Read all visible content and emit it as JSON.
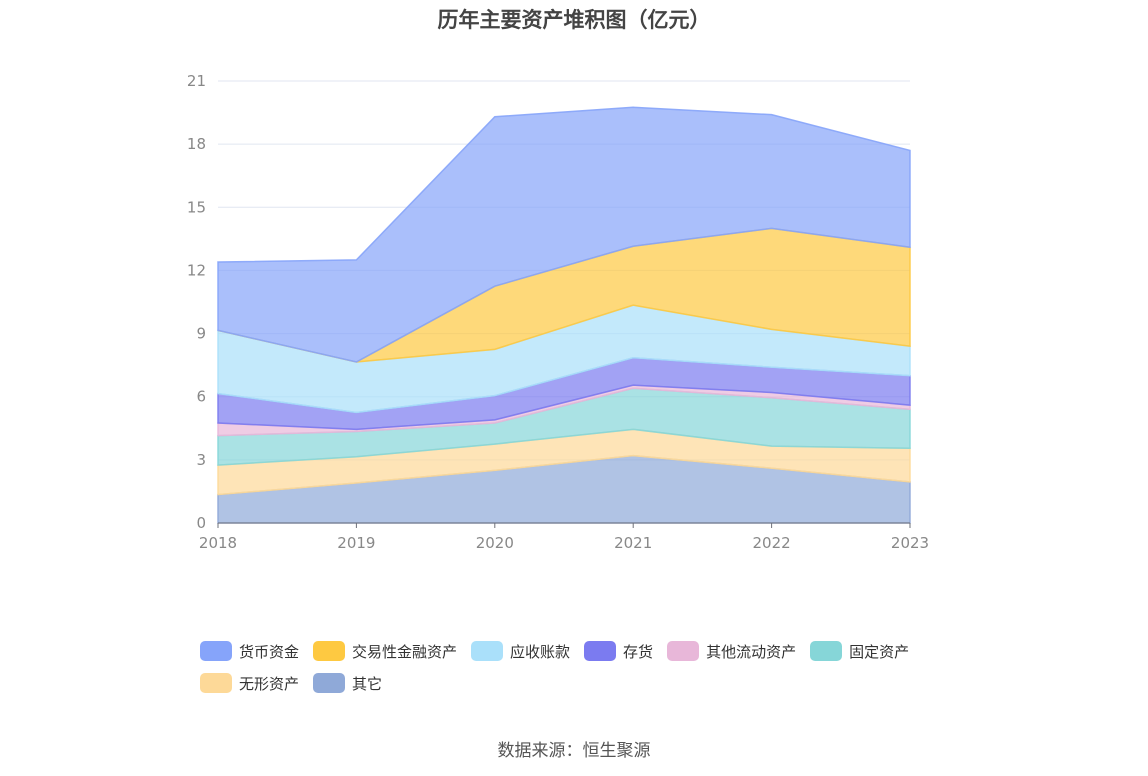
{
  "chart_data": {
    "type": "area",
    "stacked": true,
    "title": "历年主要资产堆积图（亿元）",
    "x": [
      "2018",
      "2019",
      "2020",
      "2021",
      "2022",
      "2023"
    ],
    "ylim": [
      0,
      21
    ],
    "yticks": [
      0,
      3,
      6,
      9,
      12,
      15,
      18,
      21
    ],
    "xlabel": "",
    "ylabel": "",
    "series": [
      {
        "name": "其它",
        "color": "#8fa9d8",
        "values": [
          1.35,
          1.9,
          2.5,
          3.2,
          2.6,
          1.95
        ]
      },
      {
        "name": "无形资产",
        "color": "#fdd998",
        "values": [
          1.4,
          1.25,
          1.25,
          1.25,
          1.05,
          1.6
        ]
      },
      {
        "name": "固定资产",
        "color": "#86d6d8",
        "values": [
          1.4,
          1.2,
          1.0,
          1.95,
          2.3,
          1.85
        ]
      },
      {
        "name": "其他流动资产",
        "color": "#e8b7d9",
        "values": [
          0.6,
          0.1,
          0.15,
          0.15,
          0.25,
          0.2
        ]
      },
      {
        "name": "存货",
        "color": "#7b7bf0",
        "values": [
          1.4,
          0.8,
          1.15,
          1.3,
          1.2,
          1.4
        ]
      },
      {
        "name": "应收账款",
        "color": "#aae0fa",
        "values": [
          3.0,
          2.4,
          2.2,
          2.5,
          1.8,
          1.4
        ]
      },
      {
        "name": "交易性金融资产",
        "color": "#fec941",
        "values": [
          0,
          0,
          3.0,
          2.8,
          4.8,
          4.7
        ]
      },
      {
        "name": "货币资金",
        "color": "#86a4fa",
        "values": [
          3.25,
          4.85,
          8.05,
          6.6,
          5.4,
          4.6
        ]
      }
    ]
  },
  "legend": {
    "items": [
      {
        "label": "货币资金",
        "color": "#86a4fa"
      },
      {
        "label": "交易性金融资产",
        "color": "#fec941"
      },
      {
        "label": "应收账款",
        "color": "#aae0fa"
      },
      {
        "label": "存货",
        "color": "#7b7bf0"
      },
      {
        "label": "其他流动资产",
        "color": "#e8b7d9"
      },
      {
        "label": "固定资产",
        "color": "#86d6d8"
      },
      {
        "label": "无形资产",
        "color": "#fdd998"
      },
      {
        "label": "其它",
        "color": "#8fa9d8"
      }
    ]
  },
  "source": "数据来源：恒生聚源"
}
